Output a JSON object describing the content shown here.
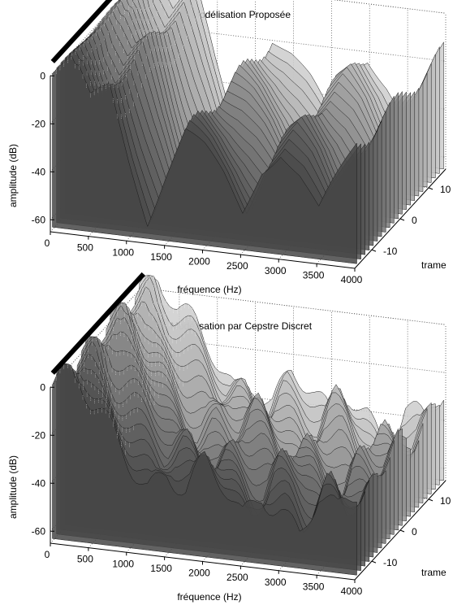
{
  "chart_data": [
    {
      "type": "surface",
      "title": "Modélisation Proposée",
      "xlabel": "fréquence (Hz)",
      "ylabel": "trame",
      "zlabel": "amplitude (dB)",
      "x_ticks": [
        "0",
        "500",
        "1000",
        "1500",
        "2000",
        "2500",
        "3000",
        "3500",
        "4000"
      ],
      "y_ticks": [
        "-10",
        "0",
        "10"
      ],
      "z_ticks": [
        "-60",
        "-40",
        "-20",
        "0"
      ],
      "xlim": [
        0,
        4000
      ],
      "ylim": [
        -16,
        16
      ],
      "zlim": [
        -65,
        0
      ],
      "grid": true,
      "colormap": "gray",
      "x_profile": [
        0,
        250,
        500,
        750,
        1000,
        1250,
        1500,
        1750,
        2000,
        2250,
        2500,
        2750,
        3000,
        3250,
        3500,
        3750,
        4000
      ],
      "amplitude_profile_db": [
        0,
        8,
        -10,
        -2,
        -30,
        -55,
        -35,
        -18,
        -25,
        -35,
        -48,
        -28,
        -20,
        -30,
        -45,
        -30,
        -15
      ]
    },
    {
      "type": "surface",
      "title": "Modélisation par Cepstre Discret",
      "xlabel": "fréquence (Hz)",
      "ylabel": "trame",
      "zlabel": "amplitude (dB)",
      "x_ticks": [
        "0",
        "500",
        "1000",
        "1500",
        "2000",
        "2500",
        "3000",
        "3500",
        "4000"
      ],
      "y_ticks": [
        "-10",
        "0",
        "10"
      ],
      "z_ticks": [
        "-60",
        "-40",
        "-20",
        "0"
      ],
      "xlim": [
        0,
        4000
      ],
      "ylim": [
        -16,
        16
      ],
      "zlim": [
        -65,
        0
      ],
      "grid": true,
      "colormap": "gray",
      "x_profile": [
        0,
        250,
        500,
        750,
        1000,
        1250,
        1500,
        1750,
        2000,
        2250,
        2500,
        2750,
        3000,
        3250,
        3500,
        3750,
        4000
      ],
      "amplitude_profile_db": [
        0,
        6,
        -8,
        -15,
        -25,
        -35,
        -30,
        -38,
        -28,
        -35,
        -45,
        -32,
        -38,
        -50,
        -35,
        -42,
        -30
      ]
    }
  ]
}
